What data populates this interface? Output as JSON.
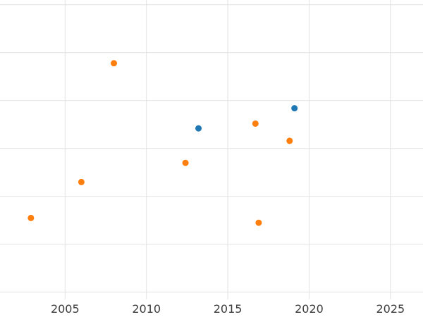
{
  "chart_data": {
    "type": "scatter",
    "title": "",
    "xlabel": "",
    "ylabel": "",
    "xlim": [
      2001,
      2027
    ],
    "ylim": [
      -0.15,
      6.1
    ],
    "x_ticks": [
      2005,
      2010,
      2015,
      2020,
      2025
    ],
    "y_gridlines": [
      0,
      1,
      2,
      3,
      4,
      5,
      6
    ],
    "y_tick_labels": [],
    "grid": true,
    "legend_position": "none",
    "grid_color": "#e2e2e2",
    "tick_label_color": "#3d3d3d",
    "background_color": "#ffffff",
    "marker_radius_px": 4.5,
    "tick_font_size_px": 16,
    "y_units_note": "y-axis has no visible tick labels; y values estimated in horizontal-gridline units (0 = lowest gridline)",
    "series": [
      {
        "name": "blue",
        "color": "#1f77b4",
        "points": [
          {
            "x": 2013.2,
            "y": 3.42
          },
          {
            "x": 2019.1,
            "y": 3.84
          }
        ]
      },
      {
        "name": "orange",
        "color": "#ff7f0e",
        "points": [
          {
            "x": 2002.9,
            "y": 1.55
          },
          {
            "x": 2006.0,
            "y": 2.3
          },
          {
            "x": 2008.0,
            "y": 4.78
          },
          {
            "x": 2012.4,
            "y": 2.7
          },
          {
            "x": 2016.7,
            "y": 3.52
          },
          {
            "x": 2016.9,
            "y": 1.45
          },
          {
            "x": 2018.8,
            "y": 3.16
          }
        ]
      }
    ]
  }
}
